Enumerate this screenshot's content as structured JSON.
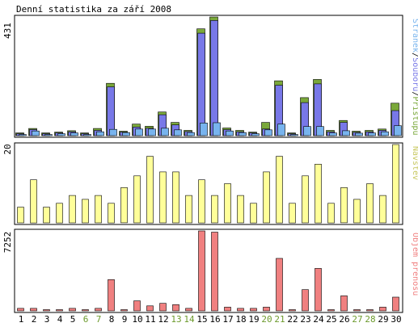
{
  "title": "Denní statistika za září 2008",
  "colors": {
    "frame": "#000000",
    "hits": "#7aa83a",
    "files": "#7878e8",
    "pages": "#78b4ee",
    "visits": "#ffff99",
    "volume": "#f08080",
    "weekday_label": "#000000",
    "weekend_label": "#6c9a2c"
  },
  "chart_data": [
    {
      "type": "bar",
      "panel": "top",
      "ymax_label": "431",
      "ymax": 431,
      "legend": [
        {
          "text": "Stránek",
          "color": "#78b4ee"
        },
        {
          "text": "/",
          "color": "#000000"
        },
        {
          "text": "Souborů",
          "color": "#7878e8"
        },
        {
          "text": "/",
          "color": "#000000"
        },
        {
          "text": "Přístupů",
          "color": "#7aa83a"
        }
      ],
      "categories": [
        "1",
        "2",
        "3",
        "4",
        "5",
        "6",
        "7",
        "8",
        "9",
        "10",
        "11",
        "12",
        "13",
        "14",
        "15",
        "16",
        "17",
        "18",
        "19",
        "20",
        "21",
        "22",
        "23",
        "24",
        "25",
        "26",
        "27",
        "28",
        "29",
        "30"
      ],
      "series": [
        {
          "name": "Přístupů",
          "values": [
            10,
            26,
            10,
            13,
            18,
            10,
            26,
            190,
            16,
            42,
            34,
            86,
            48,
            19,
            388,
            431,
            28,
            19,
            13,
            48,
            199,
            10,
            138,
            204,
            19,
            55,
            16,
            19,
            24,
            118
          ]
        },
        {
          "name": "Souborů",
          "values": [
            7,
            22,
            7,
            10,
            14,
            7,
            19,
            177,
            13,
            31,
            27,
            76,
            39,
            15,
            372,
            418,
            22,
            14,
            10,
            24,
            183,
            7,
            120,
            188,
            14,
            48,
            12,
            14,
            19,
            91
          ]
        },
        {
          "name": "Stránek",
          "values": [
            4,
            17,
            4,
            7,
            10,
            4,
            14,
            23,
            11,
            24,
            24,
            27,
            21,
            11,
            46,
            47,
            17,
            11,
            7,
            21,
            42,
            4,
            33,
            33,
            10,
            18,
            9,
            10,
            14,
            36
          ]
        }
      ]
    },
    {
      "type": "bar",
      "panel": "middle",
      "ymax_label": "20",
      "ymax": 20,
      "legend": [
        {
          "text": "Návštěv",
          "color": "#ffff99"
        }
      ],
      "categories": [
        "1",
        "2",
        "3",
        "4",
        "5",
        "6",
        "7",
        "8",
        "9",
        "10",
        "11",
        "12",
        "13",
        "14",
        "15",
        "16",
        "17",
        "18",
        "19",
        "20",
        "21",
        "22",
        "23",
        "24",
        "25",
        "26",
        "27",
        "28",
        "29",
        "30"
      ],
      "series": [
        {
          "name": "Návštěv",
          "values": [
            4,
            11,
            4,
            5,
            7,
            6,
            7,
            5,
            9,
            12,
            17,
            13,
            13,
            7,
            11,
            7,
            10,
            7,
            5,
            13,
            17,
            5,
            12,
            15,
            5,
            9,
            6,
            10,
            7,
            20
          ]
        }
      ]
    },
    {
      "type": "bar",
      "panel": "bottom",
      "ymax_label": "7252",
      "ymax": 7252,
      "legend": [
        {
          "text": "Objem přenosu",
          "color": "#f08080"
        }
      ],
      "categories": [
        "1",
        "2",
        "3",
        "4",
        "5",
        "6",
        "7",
        "8",
        "9",
        "10",
        "11",
        "12",
        "13",
        "14",
        "15",
        "16",
        "17",
        "18",
        "19",
        "20",
        "21",
        "22",
        "23",
        "24",
        "25",
        "26",
        "27",
        "28",
        "29",
        "30"
      ],
      "series": [
        {
          "name": "Objem přenosu",
          "values": [
            226,
            226,
            113,
            113,
            226,
            113,
            226,
            2832,
            113,
            906,
            453,
            680,
            566,
            226,
            7252,
            7139,
            340,
            226,
            226,
            340,
            4758,
            113,
            1926,
            3852,
            113,
            1360,
            113,
            113,
            340,
            1246
          ]
        }
      ]
    }
  ],
  "x_axis": {
    "labels": [
      "1",
      "2",
      "3",
      "4",
      "5",
      "6",
      "7",
      "8",
      "9",
      "10",
      "11",
      "12",
      "13",
      "14",
      "15",
      "16",
      "17",
      "18",
      "19",
      "20",
      "21",
      "22",
      "23",
      "24",
      "25",
      "26",
      "27",
      "28",
      "29",
      "30"
    ],
    "weekend_days": [
      "6",
      "7",
      "13",
      "14",
      "20",
      "21",
      "27",
      "28"
    ]
  }
}
